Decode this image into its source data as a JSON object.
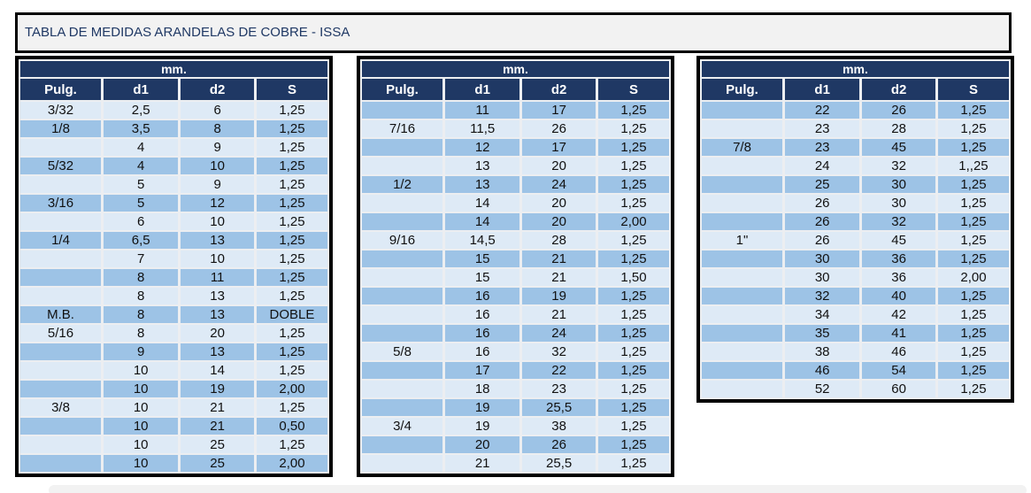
{
  "title": "TABLA DE MEDIDAS ARANDELAS DE COBRE - ISSA",
  "unit_header": "mm.",
  "columns": [
    "Pulg.",
    "d1",
    "d2",
    "S"
  ],
  "colors": {
    "header_navy": "#1f3864",
    "row_dark_blue": "#9dc3e6",
    "row_light_blue": "#deeaf6",
    "title_text": "#1f3864",
    "table_border": "#000000",
    "title_bar_bg": "#f2f2f2"
  },
  "tables": [
    {
      "first_row_shade": "light",
      "rows": [
        [
          "3/32",
          "2,5",
          "6",
          "1,25"
        ],
        [
          "1/8",
          "3,5",
          "8",
          "1,25"
        ],
        [
          "",
          "4",
          "9",
          "1,25"
        ],
        [
          "5/32",
          "4",
          "10",
          "1,25"
        ],
        [
          "",
          "5",
          "9",
          "1,25"
        ],
        [
          "3/16",
          "5",
          "12",
          "1,25"
        ],
        [
          "",
          "6",
          "10",
          "1,25"
        ],
        [
          "1/4",
          "6,5",
          "13",
          "1,25"
        ],
        [
          "",
          "7",
          "10",
          "1,25"
        ],
        [
          "",
          "8",
          "11",
          "1,25"
        ],
        [
          "",
          "8",
          "13",
          "1,25"
        ],
        [
          "M.B.",
          "8",
          "13",
          "DOBLE"
        ],
        [
          "5/16",
          "8",
          "20",
          "1,25"
        ],
        [
          "",
          "9",
          "13",
          "1,25"
        ],
        [
          "",
          "10",
          "14",
          "1,25"
        ],
        [
          "",
          "10",
          "19",
          "2,00"
        ],
        [
          "3/8",
          "10",
          "21",
          "1,25"
        ],
        [
          "",
          "10",
          "21",
          "0,50"
        ],
        [
          "",
          "10",
          "25",
          "1,25"
        ],
        [
          "",
          "10",
          "25",
          "2,00"
        ]
      ]
    },
    {
      "first_row_shade": "dark",
      "rows": [
        [
          "",
          "11",
          "17",
          "1,25"
        ],
        [
          "7/16",
          "11,5",
          "26",
          "1,25"
        ],
        [
          "",
          "12",
          "17",
          "1,25"
        ],
        [
          "",
          "13",
          "20",
          "1,25"
        ],
        [
          "1/2",
          "13",
          "24",
          "1,25"
        ],
        [
          "",
          "14",
          "20",
          "1,25"
        ],
        [
          "",
          "14",
          "20",
          "2,00"
        ],
        [
          "9/16",
          "14,5",
          "28",
          "1,25"
        ],
        [
          "",
          "15",
          "21",
          "1,25"
        ],
        [
          "",
          "15",
          "21",
          "1,50"
        ],
        [
          "",
          "16",
          "19",
          "1,25"
        ],
        [
          "",
          "16",
          "21",
          "1,25"
        ],
        [
          "",
          "16",
          "24",
          "1,25"
        ],
        [
          "5/8",
          "16",
          "32",
          "1,25"
        ],
        [
          "",
          "17",
          "22",
          "1,25"
        ],
        [
          "",
          "18",
          "23",
          "1,25"
        ],
        [
          "",
          "19",
          "25,5",
          "1,25"
        ],
        [
          "3/4",
          "19",
          "38",
          "1,25"
        ],
        [
          "",
          "20",
          "26",
          "1,25"
        ],
        [
          "",
          "21",
          "25,5",
          "1,25"
        ]
      ]
    },
    {
      "first_row_shade": "dark",
      "rows": [
        [
          "",
          "22",
          "26",
          "1,25"
        ],
        [
          "",
          "23",
          "28",
          "1,25"
        ],
        [
          "7/8",
          "23",
          "45",
          "1,25"
        ],
        [
          "",
          "24",
          "32",
          "1,,25"
        ],
        [
          "",
          "25",
          "30",
          "1,25"
        ],
        [
          "",
          "26",
          "30",
          "1,25"
        ],
        [
          "",
          "26",
          "32",
          "1,25"
        ],
        [
          "1\"",
          "26",
          "45",
          "1,25"
        ],
        [
          "",
          "30",
          "36",
          "1,25"
        ],
        [
          "",
          "30",
          "36",
          "2,00"
        ],
        [
          "",
          "32",
          "40",
          "1,25"
        ],
        [
          "",
          "34",
          "42",
          "1,25"
        ],
        [
          "",
          "35",
          "41",
          "1,25"
        ],
        [
          "",
          "38",
          "46",
          "1,25"
        ],
        [
          "",
          "46",
          "54",
          "1,25"
        ],
        [
          "",
          "52",
          "60",
          "1,25"
        ]
      ]
    }
  ]
}
